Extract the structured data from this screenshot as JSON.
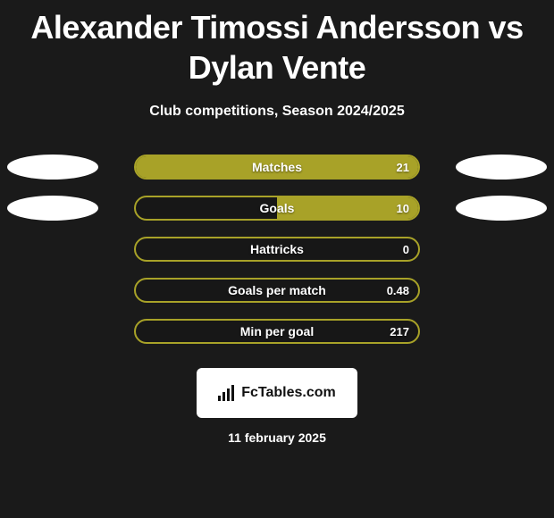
{
  "title": "Alexander Timossi Andersson vs Dylan Vente",
  "subtitle": "Club competitions, Season 2024/2025",
  "date": "11 february 2025",
  "logo_text": "FcTables.com",
  "colors": {
    "background": "#1a1a1a",
    "bar_border": "#a8a228",
    "bar_fill": "#a8a228",
    "text": "#ffffff",
    "oval": "#ffffff"
  },
  "stats": [
    {
      "label": "Matches",
      "left_value": "",
      "right_value": "21",
      "left_fill_pct": 0,
      "right_fill_pct": 100,
      "show_left_oval": true,
      "show_right_oval": true
    },
    {
      "label": "Goals",
      "left_value": "",
      "right_value": "10",
      "left_fill_pct": 0,
      "right_fill_pct": 50,
      "show_left_oval": true,
      "show_right_oval": true
    },
    {
      "label": "Hattricks",
      "left_value": "",
      "right_value": "0",
      "left_fill_pct": 0,
      "right_fill_pct": 0,
      "show_left_oval": false,
      "show_right_oval": false
    },
    {
      "label": "Goals per match",
      "left_value": "",
      "right_value": "0.48",
      "left_fill_pct": 0,
      "right_fill_pct": 0,
      "show_left_oval": false,
      "show_right_oval": false
    },
    {
      "label": "Min per goal",
      "left_value": "",
      "right_value": "217",
      "left_fill_pct": 0,
      "right_fill_pct": 0,
      "show_left_oval": false,
      "show_right_oval": false
    }
  ]
}
